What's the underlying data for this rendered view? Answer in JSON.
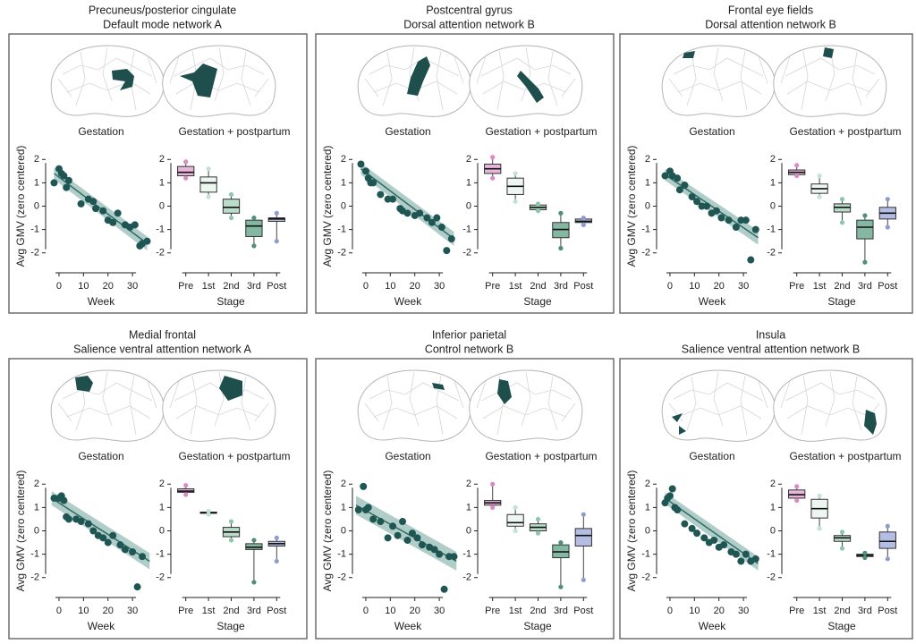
{
  "chart_data": [
    {
      "type": "scatter",
      "panel_title": "Precuneus/posterior cingulate",
      "panel_subtitle": "Default mode network A",
      "title": "Gestation",
      "xlabel": "Week",
      "ylabel": "Avg GMV (zero centered)",
      "color": "#1f5654",
      "fit_color": "#2e6b66",
      "band_color": "#9dc1ba",
      "x": [
        -2,
        0,
        1,
        2,
        3,
        4,
        9,
        12,
        14,
        15,
        18,
        20,
        22,
        24,
        27,
        29,
        31,
        33,
        34,
        36
      ],
      "values": [
        1.0,
        1.6,
        1.4,
        1.3,
        0.8,
        1.1,
        0.1,
        0.3,
        0.2,
        -0.1,
        -0.2,
        -0.6,
        -0.7,
        -0.3,
        -0.8,
        -0.9,
        -0.8,
        -1.7,
        -1.6,
        -1.5
      ],
      "fit": {
        "x": [
          -2,
          36
        ],
        "y": [
          1.4,
          -1.6
        ],
        "lower": [
          1.15,
          -1.9
        ],
        "upper": [
          1.65,
          -1.3
        ]
      },
      "xlim": [
        -4,
        38
      ],
      "xticks": [
        0,
        10,
        20,
        30
      ],
      "ylim": [
        -2.7,
        2.7
      ],
      "yticks": [
        -2,
        -1,
        0,
        1,
        2
      ]
    },
    {
      "type": "box",
      "title": "Gestation + postpartum",
      "xlabel": "Stage",
      "categories": [
        "Pre",
        "1st",
        "2nd",
        "3rd",
        "Post"
      ],
      "colors": [
        "#e7b6da",
        "#eef6f2",
        "#b9dccb",
        "#85b8a2",
        "#b4bde3"
      ],
      "point_colors": [
        "#d98bc6",
        "#c3e2d6",
        "#8cc7ad",
        "#4f8f78",
        "#8f9bd1"
      ],
      "boxes": [
        {
          "min": 1.2,
          "q1": 1.3,
          "median": 1.45,
          "q3": 1.7,
          "max": 1.9
        },
        {
          "min": 0.4,
          "q1": 0.6,
          "median": 1.0,
          "q3": 1.25,
          "max": 1.6
        },
        {
          "min": -0.5,
          "q1": -0.3,
          "median": -0.05,
          "q3": 0.3,
          "max": 0.5
        },
        {
          "min": -1.7,
          "q1": -1.3,
          "median": -0.85,
          "q3": -0.6,
          "max": -0.5
        },
        {
          "min": -1.5,
          "q1": -0.65,
          "median": -0.55,
          "q3": -0.5,
          "max": -0.3
        }
      ],
      "ylim": [
        -2.7,
        2.7
      ],
      "yticks": [
        -2,
        -1,
        0,
        1,
        2
      ]
    },
    {
      "type": "scatter",
      "panel_title": "Postcentral gyrus",
      "panel_subtitle": "Dorsal attention network B",
      "title": "Gestation",
      "xlabel": "Week",
      "ylabel": "Avg GMV (zero centered)",
      "color": "#1f5654",
      "fit_color": "#2e6b66",
      "band_color": "#9dc1ba",
      "x": [
        -2,
        0,
        1,
        2,
        3,
        6,
        9,
        11,
        14,
        15,
        17,
        20,
        22,
        25,
        27,
        29,
        31,
        33,
        35
      ],
      "values": [
        1.8,
        1.5,
        1.2,
        1.0,
        1.0,
        0.5,
        0.3,
        0.3,
        -0.1,
        -0.2,
        -0.3,
        -0.4,
        -0.3,
        -0.5,
        -0.7,
        -0.5,
        -0.9,
        -1.9,
        -1.4
      ],
      "fit": {
        "x": [
          -2,
          36
        ],
        "y": [
          1.6,
          -1.4
        ],
        "lower": [
          1.35,
          -1.7
        ],
        "upper": [
          1.85,
          -1.1
        ]
      },
      "xlim": [
        -4,
        38
      ],
      "xticks": [
        0,
        10,
        20,
        30
      ],
      "ylim": [
        -2.7,
        2.7
      ],
      "yticks": [
        -2,
        -1,
        0,
        1,
        2
      ]
    },
    {
      "type": "box",
      "title": "Gestation + postpartum",
      "xlabel": "Stage",
      "categories": [
        "Pre",
        "1st",
        "2nd",
        "3rd",
        "Post"
      ],
      "colors": [
        "#e7b6da",
        "#eef6f2",
        "#b9dccb",
        "#85b8a2",
        "#b4bde3"
      ],
      "point_colors": [
        "#d98bc6",
        "#c3e2d6",
        "#8cc7ad",
        "#4f8f78",
        "#8f9bd1"
      ],
      "boxes": [
        {
          "min": 1.2,
          "q1": 1.4,
          "median": 1.6,
          "q3": 1.8,
          "max": 2.1
        },
        {
          "min": 0.2,
          "q1": 0.5,
          "median": 0.85,
          "q3": 1.2,
          "max": 1.4
        },
        {
          "min": -0.2,
          "q1": -0.15,
          "median": -0.05,
          "q3": 0.05,
          "max": 0.1
        },
        {
          "min": -1.8,
          "q1": -1.35,
          "median": -1.0,
          "q3": -0.7,
          "max": -0.3
        },
        {
          "min": -0.8,
          "q1": -0.7,
          "median": -0.65,
          "q3": -0.55,
          "max": -0.5
        }
      ],
      "ylim": [
        -2.7,
        2.7
      ],
      "yticks": [
        -2,
        -1,
        0,
        1,
        2
      ]
    },
    {
      "type": "scatter",
      "panel_title": "Frontal eye fields",
      "panel_subtitle": "Dorsal attention network B",
      "title": "Gestation",
      "xlabel": "Week",
      "ylabel": "Avg GMV (zero centered)",
      "color": "#1f5654",
      "fit_color": "#2e6b66",
      "band_color": "#9dc1ba",
      "x": [
        -2,
        0,
        1,
        3,
        4,
        6,
        9,
        11,
        13,
        15,
        17,
        19,
        21,
        24,
        27,
        29,
        31,
        33,
        35
      ],
      "values": [
        1.3,
        1.5,
        1.3,
        1.2,
        0.7,
        0.9,
        0.4,
        0.2,
        0.0,
        0.0,
        -0.3,
        -0.2,
        -0.5,
        -0.6,
        -0.9,
        -0.6,
        -0.6,
        -2.3,
        -1.0
      ],
      "fit": {
        "x": [
          -2,
          36
        ],
        "y": [
          1.35,
          -1.35
        ],
        "lower": [
          1.1,
          -1.65
        ],
        "upper": [
          1.6,
          -1.05
        ]
      },
      "xlim": [
        -4,
        38
      ],
      "xticks": [
        0,
        10,
        20,
        30
      ],
      "ylim": [
        -2.7,
        2.7
      ],
      "yticks": [
        -2,
        -1,
        0,
        1,
        2
      ]
    },
    {
      "type": "box",
      "title": "Gestation + postpartum",
      "xlabel": "Stage",
      "categories": [
        "Pre",
        "1st",
        "2nd",
        "3rd",
        "Post"
      ],
      "colors": [
        "#e7b6da",
        "#eef6f2",
        "#b9dccb",
        "#85b8a2",
        "#b4bde3"
      ],
      "point_colors": [
        "#d98bc6",
        "#c3e2d6",
        "#8cc7ad",
        "#4f8f78",
        "#8f9bd1"
      ],
      "boxes": [
        {
          "min": 1.3,
          "q1": 1.35,
          "median": 1.45,
          "q3": 1.55,
          "max": 1.75
        },
        {
          "min": 0.4,
          "q1": 0.55,
          "median": 0.75,
          "q3": 0.95,
          "max": 1.3
        },
        {
          "min": -0.7,
          "q1": -0.25,
          "median": -0.05,
          "q3": 0.1,
          "max": 0.3
        },
        {
          "min": -2.4,
          "q1": -1.4,
          "median": -0.9,
          "q3": -0.6,
          "max": -0.4
        },
        {
          "min": -0.9,
          "q1": -0.55,
          "median": -0.3,
          "q3": -0.05,
          "max": 0.3
        }
      ],
      "ylim": [
        -2.7,
        2.7
      ],
      "yticks": [
        -2,
        -1,
        0,
        1,
        2
      ]
    },
    {
      "type": "scatter",
      "panel_title": "Medial frontal",
      "panel_subtitle": "Salience ventral attention network A",
      "title": "Gestation",
      "xlabel": "Week",
      "ylabel": "Avg GMV (zero centered)",
      "color": "#1f5654",
      "fit_color": "#2e6b66",
      "band_color": "#9dc1ba",
      "x": [
        -2,
        0,
        1,
        2,
        3,
        4,
        7,
        9,
        12,
        14,
        16,
        18,
        20,
        22,
        25,
        27,
        30,
        32,
        34
      ],
      "values": [
        1.4,
        1.4,
        1.5,
        1.3,
        0.6,
        0.5,
        0.5,
        0.4,
        0.3,
        0.0,
        -0.2,
        -0.3,
        -0.5,
        -0.2,
        -0.6,
        -0.8,
        -0.9,
        -2.4,
        -1.1
      ],
      "fit": {
        "x": [
          -3,
          37
        ],
        "y": [
          1.4,
          -1.3
        ],
        "lower": [
          1.1,
          -1.65
        ],
        "upper": [
          1.7,
          -0.95
        ]
      },
      "xlim": [
        -4,
        38
      ],
      "xticks": [
        0,
        10,
        20,
        30
      ],
      "ylim": [
        -2.7,
        2.7
      ],
      "yticks": [
        -2,
        -1,
        0,
        1,
        2
      ]
    },
    {
      "type": "box",
      "title": "Gestation + postpartum",
      "xlabel": "Stage",
      "categories": [
        "Pre",
        "1st",
        "2nd",
        "3rd",
        "Post"
      ],
      "colors": [
        "#e7b6da",
        "#eef6f2",
        "#b9dccb",
        "#85b8a2",
        "#b4bde3"
      ],
      "point_colors": [
        "#d98bc6",
        "#c3e2d6",
        "#8cc7ad",
        "#4f8f78",
        "#8f9bd1"
      ],
      "boxes": [
        {
          "min": 1.55,
          "q1": 1.65,
          "median": 1.7,
          "q3": 1.8,
          "max": 1.95
        },
        {
          "min": 0.7,
          "q1": 0.75,
          "median": 0.78,
          "q3": 0.8,
          "max": 0.85
        },
        {
          "min": -0.4,
          "q1": -0.25,
          "median": -0.05,
          "q3": 0.15,
          "max": 0.4
        },
        {
          "min": -2.2,
          "q1": -0.8,
          "median": -0.7,
          "q3": -0.55,
          "max": -0.4
        },
        {
          "min": -1.3,
          "q1": -0.65,
          "median": -0.55,
          "q3": -0.45,
          "max": -0.3
        }
      ],
      "ylim": [
        -2.7,
        2.7
      ],
      "yticks": [
        -2,
        -1,
        0,
        1,
        2
      ]
    },
    {
      "type": "scatter",
      "panel_title": "Inferior parietal",
      "panel_subtitle": "Control network B",
      "title": "Gestation",
      "xlabel": "Week",
      "ylabel": "Avg GMV (zero centered)",
      "color": "#1f5654",
      "fit_color": "#2e6b66",
      "band_color": "#9dc1ba",
      "x": [
        -3,
        -1,
        0,
        1,
        3,
        6,
        9,
        11,
        13,
        15,
        17,
        19,
        21,
        23,
        26,
        28,
        30,
        32,
        34,
        36
      ],
      "values": [
        0.9,
        1.9,
        0.9,
        1.0,
        0.5,
        0.4,
        -0.3,
        0.2,
        -0.2,
        0.4,
        -0.4,
        -0.1,
        -0.3,
        -0.6,
        -0.7,
        -0.8,
        -1.0,
        -2.5,
        -1.1,
        -1.1
      ],
      "fit": {
        "x": [
          -4,
          37
        ],
        "y": [
          1.1,
          -1.3
        ],
        "lower": [
          0.7,
          -1.7
        ],
        "upper": [
          1.5,
          -0.9
        ]
      },
      "xlim": [
        -4,
        38
      ],
      "xticks": [
        0,
        10,
        20,
        30
      ],
      "ylim": [
        -2.7,
        2.7
      ],
      "yticks": [
        -2,
        -1,
        0,
        1,
        2
      ]
    },
    {
      "type": "box",
      "title": "Gestation + postpartum",
      "xlabel": "Stage",
      "categories": [
        "Pre",
        "1st",
        "2nd",
        "3rd",
        "Post"
      ],
      "colors": [
        "#e7b6da",
        "#eef6f2",
        "#b9dccb",
        "#85b8a2",
        "#b4bde3"
      ],
      "point_colors": [
        "#d98bc6",
        "#c3e2d6",
        "#8cc7ad",
        "#4f8f78",
        "#8f9bd1"
      ],
      "boxes": [
        {
          "min": 1.0,
          "q1": 1.1,
          "median": 1.2,
          "q3": 1.3,
          "max": 2.0
        },
        {
          "min": 0.0,
          "q1": 0.2,
          "median": 0.35,
          "q3": 0.7,
          "max": 1.0
        },
        {
          "min": -0.1,
          "q1": 0.0,
          "median": 0.15,
          "q3": 0.3,
          "max": 0.5
        },
        {
          "min": -2.4,
          "q1": -1.15,
          "median": -0.9,
          "q3": -0.6,
          "max": -0.5
        },
        {
          "min": -2.1,
          "q1": -0.65,
          "median": -0.2,
          "q3": 0.1,
          "max": 0.7
        }
      ],
      "ylim": [
        -2.7,
        2.7
      ],
      "yticks": [
        -2,
        -1,
        0,
        1,
        2
      ]
    },
    {
      "type": "scatter",
      "panel_title": "Insula",
      "panel_subtitle": "Salience ventral attention network B",
      "title": "Gestation",
      "xlabel": "Week",
      "ylabel": "Avg GMV (zero centered)",
      "color": "#1f5654",
      "fit_color": "#2e6b66",
      "band_color": "#9dc1ba",
      "x": [
        -2,
        -1,
        0,
        1,
        2,
        3,
        6,
        9,
        11,
        14,
        16,
        18,
        20,
        22,
        25,
        27,
        29,
        31,
        33,
        35
      ],
      "values": [
        1.2,
        1.4,
        1.5,
        1.8,
        1.0,
        0.9,
        0.3,
        0.1,
        -0.1,
        -0.3,
        -0.5,
        -0.4,
        -0.7,
        -0.6,
        -0.9,
        -1.0,
        -1.3,
        -1.0,
        -1.3,
        -1.2
      ],
      "fit": {
        "x": [
          -2,
          36
        ],
        "y": [
          1.4,
          -1.4
        ],
        "lower": [
          1.15,
          -1.7
        ],
        "upper": [
          1.65,
          -1.1
        ]
      },
      "xlim": [
        -4,
        38
      ],
      "xticks": [
        0,
        10,
        20,
        30
      ],
      "ylim": [
        -2.7,
        2.7
      ],
      "yticks": [
        -2,
        -1,
        0,
        1,
        2
      ]
    },
    {
      "type": "box",
      "title": "Gestation + postpartum",
      "xlabel": "Stage",
      "categories": [
        "Pre",
        "1st",
        "2nd",
        "3rd",
        "Post"
      ],
      "colors": [
        "#e7b6da",
        "#eef6f2",
        "#b9dccb",
        "#85b8a2",
        "#b4bde3"
      ],
      "point_colors": [
        "#d98bc6",
        "#c3e2d6",
        "#8cc7ad",
        "#4f8f78",
        "#8f9bd1"
      ],
      "boxes": [
        {
          "min": 1.3,
          "q1": 1.4,
          "median": 1.55,
          "q3": 1.75,
          "max": 1.9
        },
        {
          "min": 0.1,
          "q1": 0.55,
          "median": 0.95,
          "q3": 1.35,
          "max": 1.5
        },
        {
          "min": -0.75,
          "q1": -0.45,
          "median": -0.3,
          "q3": -0.2,
          "max": -0.05
        },
        {
          "min": -1.15,
          "q1": -1.1,
          "median": -1.05,
          "q3": -1.0,
          "max": -0.95
        },
        {
          "min": -1.2,
          "q1": -0.75,
          "median": -0.45,
          "q3": -0.05,
          "max": 0.2
        }
      ],
      "ylim": [
        -2.7,
        2.7
      ],
      "yticks": [
        -2,
        -1,
        0,
        1,
        2
      ]
    }
  ]
}
